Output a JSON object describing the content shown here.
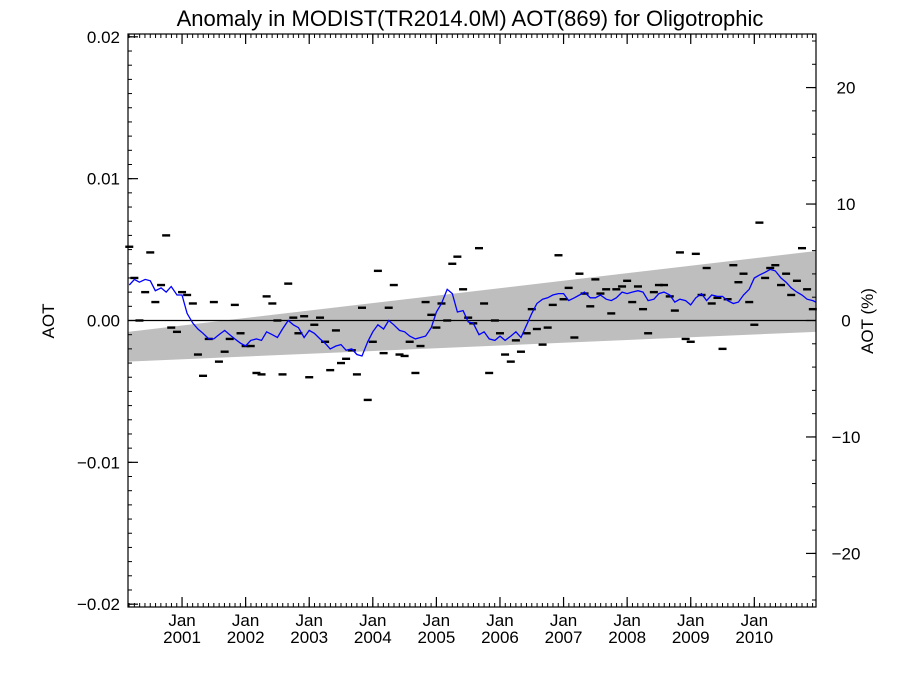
{
  "chart_data": {
    "type": "line",
    "title": "Anomaly in MODIST(TR2014.0M) AOT(869) for Oligotrophic",
    "ylabel": "AOT",
    "ylabel_right": "AOT (%)",
    "xlabel": "",
    "xlim": [
      2000.15,
      2010.97
    ],
    "ylim": [
      -0.0202,
      0.0202
    ],
    "ylim_right": [
      -24.6,
      24.6
    ],
    "yticks": [
      {
        "value": 0.02,
        "label": "0.02"
      },
      {
        "value": 0.01,
        "label": "0.01"
      },
      {
        "value": 0.0,
        "label": "0.00"
      },
      {
        "value": -0.01,
        "label": "−0.01"
      },
      {
        "value": -0.02,
        "label": "−0.02"
      }
    ],
    "yticks_right": [
      {
        "value": 20,
        "label": "20"
      },
      {
        "value": 10,
        "label": "10"
      },
      {
        "value": 0,
        "label": "0"
      },
      {
        "value": -10,
        "label": "−10"
      },
      {
        "value": -20,
        "label": "−20"
      }
    ],
    "xticks": [
      {
        "value": 2001.0,
        "top": "Jan",
        "bottom": "2001"
      },
      {
        "value": 2002.0,
        "top": "Jan",
        "bottom": "2002"
      },
      {
        "value": 2003.0,
        "top": "Jan",
        "bottom": "2003"
      },
      {
        "value": 2004.0,
        "top": "Jan",
        "bottom": "2004"
      },
      {
        "value": 2005.0,
        "top": "Jan",
        "bottom": "2005"
      },
      {
        "value": 2006.0,
        "top": "Jan",
        "bottom": "2006"
      },
      {
        "value": 2007.0,
        "top": "Jan",
        "bottom": "2007"
      },
      {
        "value": 2008.0,
        "top": "Jan",
        "bottom": "2008"
      },
      {
        "value": 2009.0,
        "top": "Jan",
        "bottom": "2009"
      },
      {
        "value": 2010.0,
        "top": "Jan",
        "bottom": "2010"
      }
    ],
    "band": {
      "x": [
        2000.15,
        2010.97
      ],
      "lower": [
        -0.0029,
        -0.0008
      ],
      "upper": [
        -0.0008,
        0.0049
      ],
      "color": "#bebebe"
    },
    "zero_line": 0.0,
    "series": [
      {
        "style": "markers",
        "color": "#000000",
        "x": [
          2000.17,
          2000.25,
          2000.33,
          2000.42,
          2000.5,
          2000.58,
          2000.67,
          2000.75,
          2000.83,
          2000.92,
          2001.0,
          2001.08,
          2001.17,
          2001.25,
          2001.33,
          2001.42,
          2001.5,
          2001.58,
          2001.67,
          2001.75,
          2001.83,
          2001.92,
          2002.0,
          2002.08,
          2002.17,
          2002.25,
          2002.33,
          2002.42,
          2002.5,
          2002.58,
          2002.67,
          2002.75,
          2002.83,
          2002.92,
          2003.0,
          2003.08,
          2003.17,
          2003.25,
          2003.33,
          2003.42,
          2003.5,
          2003.58,
          2003.67,
          2003.75,
          2003.83,
          2003.92,
          2004.0,
          2004.08,
          2004.17,
          2004.25,
          2004.33,
          2004.42,
          2004.5,
          2004.58,
          2004.67,
          2004.75,
          2004.83,
          2004.92,
          2005.0,
          2005.08,
          2005.17,
          2005.25,
          2005.33,
          2005.42,
          2005.5,
          2005.58,
          2005.67,
          2005.75,
          2005.83,
          2005.92,
          2006.0,
          2006.08,
          2006.17,
          2006.25,
          2006.33,
          2006.42,
          2006.5,
          2006.58,
          2006.67,
          2006.75,
          2006.83,
          2006.92,
          2007.0,
          2007.08,
          2007.17,
          2007.25,
          2007.33,
          2007.42,
          2007.5,
          2007.58,
          2007.67,
          2007.75,
          2007.83,
          2007.92,
          2008.0,
          2008.08,
          2008.17,
          2008.25,
          2008.33,
          2008.42,
          2008.5,
          2008.58,
          2008.67,
          2008.75,
          2008.83,
          2008.92,
          2009.0,
          2009.08,
          2009.17,
          2009.25,
          2009.33,
          2009.42,
          2009.5,
          2009.58,
          2009.67,
          2009.75,
          2009.83,
          2009.92,
          2010.0,
          2010.08,
          2010.17,
          2010.25,
          2010.33,
          2010.42,
          2010.5,
          2010.58,
          2010.67,
          2010.75,
          2010.83,
          2010.92
        ],
        "y": [
          0.0052,
          0.003,
          0.0,
          0.002,
          0.0048,
          0.0013,
          0.0025,
          0.006,
          -0.0005,
          -0.0008,
          0.002,
          0.0018,
          0.0012,
          -0.0024,
          -0.0039,
          -0.0013,
          0.0013,
          -0.0029,
          -0.0022,
          -0.0013,
          0.0011,
          -0.0009,
          -0.0018,
          -0.0018,
          -0.0037,
          -0.0038,
          0.0017,
          0.0012,
          0.0,
          -0.0038,
          0.0026,
          0.0002,
          -0.0009,
          0.0003,
          -0.004,
          -0.0003,
          0.0002,
          -0.0015,
          -0.0035,
          -0.0007,
          -0.003,
          -0.0027,
          -0.0021,
          -0.0038,
          0.0009,
          -0.0056,
          -0.0015,
          0.0035,
          -0.0023,
          0.0009,
          0.0025,
          -0.0024,
          -0.0025,
          -0.0015,
          -0.0037,
          -0.0018,
          0.0013,
          0.0004,
          -0.0005,
          0.0012,
          0.0,
          0.004,
          0.0045,
          0.0022,
          0.0002,
          -0.0002,
          0.0051,
          0.0012,
          -0.0037,
          0.0,
          -0.0009,
          -0.0024,
          -0.0029,
          -0.0014,
          -0.0022,
          -0.0009,
          0.0008,
          -0.0006,
          -0.0017,
          -0.0005,
          0.0011,
          0.0046,
          0.0015,
          0.0023,
          -0.0012,
          0.0033,
          0.0019,
          0.001,
          0.0029,
          0.0019,
          0.0022,
          0.0005,
          0.0022,
          0.0024,
          0.0028,
          0.0013,
          0.0024,
          0.0008,
          -0.0009,
          0.002,
          0.0025,
          0.0025,
          0.0017,
          0.0007,
          0.0048,
          -0.0013,
          -0.0015,
          0.0047,
          0.0018,
          0.0037,
          0.0012,
          0.0016,
          -0.002,
          0.0015,
          0.0039,
          0.0027,
          0.0033,
          0.0013,
          -0.0003,
          0.0069,
          0.003,
          0.0037,
          0.0039,
          0.0025,
          0.0033,
          0.0018,
          0.0028,
          0.0051,
          0.0022,
          0.0008
        ]
      },
      {
        "style": "line",
        "color": "#0000ff",
        "x": [
          2000.17,
          2000.25,
          2000.33,
          2000.42,
          2000.5,
          2000.58,
          2000.67,
          2000.75,
          2000.83,
          2000.92,
          2001.0,
          2001.08,
          2001.17,
          2001.25,
          2001.33,
          2001.42,
          2001.5,
          2001.58,
          2001.67,
          2001.75,
          2001.83,
          2001.92,
          2002.0,
          2002.08,
          2002.17,
          2002.25,
          2002.33,
          2002.42,
          2002.5,
          2002.58,
          2002.67,
          2002.75,
          2002.83,
          2002.92,
          2003.0,
          2003.08,
          2003.17,
          2003.25,
          2003.33,
          2003.42,
          2003.5,
          2003.58,
          2003.67,
          2003.75,
          2003.83,
          2003.92,
          2004.0,
          2004.08,
          2004.17,
          2004.25,
          2004.33,
          2004.42,
          2004.5,
          2004.58,
          2004.67,
          2004.75,
          2004.83,
          2004.92,
          2005.0,
          2005.08,
          2005.17,
          2005.25,
          2005.33,
          2005.42,
          2005.5,
          2005.58,
          2005.67,
          2005.75,
          2005.83,
          2005.92,
          2006.0,
          2006.08,
          2006.17,
          2006.25,
          2006.33,
          2006.42,
          2006.5,
          2006.58,
          2006.67,
          2006.75,
          2006.83,
          2006.92,
          2007.0,
          2007.08,
          2007.17,
          2007.25,
          2007.33,
          2007.42,
          2007.5,
          2007.58,
          2007.67,
          2007.75,
          2007.83,
          2007.92,
          2008.0,
          2008.08,
          2008.17,
          2008.25,
          2008.33,
          2008.42,
          2008.5,
          2008.58,
          2008.67,
          2008.75,
          2008.83,
          2008.92,
          2009.0,
          2009.08,
          2009.17,
          2009.25,
          2009.33,
          2009.42,
          2009.5,
          2009.58,
          2009.67,
          2009.75,
          2009.83,
          2009.92,
          2010.0,
          2010.08,
          2010.17,
          2010.25,
          2010.33,
          2010.42,
          2010.5,
          2010.58,
          2010.67,
          2010.75,
          2010.83,
          2010.92,
          2010.97
        ],
        "y": [
          0.0025,
          0.0029,
          0.0027,
          0.0029,
          0.0028,
          0.0021,
          0.0023,
          0.002,
          0.0024,
          0.0018,
          0.0018,
          0.0005,
          -0.0002,
          -0.0006,
          -0.0009,
          -0.0013,
          -0.0013,
          -0.001,
          -0.0007,
          -0.001,
          -0.0013,
          -0.0016,
          -0.0018,
          -0.0014,
          -0.0013,
          -0.0014,
          -0.0008,
          -0.001,
          -0.0012,
          -0.0006,
          0.0,
          -0.0003,
          -0.0005,
          -0.0012,
          -0.0007,
          -0.0009,
          -0.0013,
          -0.0016,
          -0.002,
          -0.0018,
          -0.0017,
          -0.0021,
          -0.002,
          -0.0024,
          -0.0025,
          -0.0015,
          -0.0008,
          -0.0003,
          -0.0006,
          0.0,
          -0.0003,
          -0.0007,
          -0.0008,
          -0.0011,
          -0.0013,
          -0.0012,
          -0.0011,
          -0.0005,
          0.0006,
          0.0012,
          0.0022,
          0.0019,
          0.0006,
          0.0007,
          -0.0001,
          -0.0002,
          -0.001,
          -0.0008,
          -0.0013,
          -0.0014,
          -0.0011,
          -0.0014,
          -0.0011,
          -0.0008,
          -0.0012,
          -0.0003,
          0.0005,
          0.0012,
          0.0015,
          0.0016,
          0.0018,
          0.0019,
          0.0019,
          0.0014,
          0.0016,
          0.0018,
          0.002,
          0.0016,
          0.0016,
          0.0018,
          0.0015,
          0.0014,
          0.0016,
          0.002,
          0.0019,
          0.002,
          0.0021,
          0.002,
          0.0014,
          0.0015,
          0.0019,
          0.002,
          0.0018,
          0.0013,
          0.0015,
          0.0014,
          0.0011,
          0.0016,
          0.0019,
          0.0014,
          0.0018,
          0.0017,
          0.0017,
          0.0014,
          0.0012,
          0.0013,
          0.0018,
          0.0022,
          0.003,
          0.0032,
          0.0034,
          0.0036,
          0.0035,
          0.003,
          0.0027,
          0.0023,
          0.002,
          0.0018,
          0.0015,
          0.0014,
          0.0013
        ]
      }
    ]
  }
}
